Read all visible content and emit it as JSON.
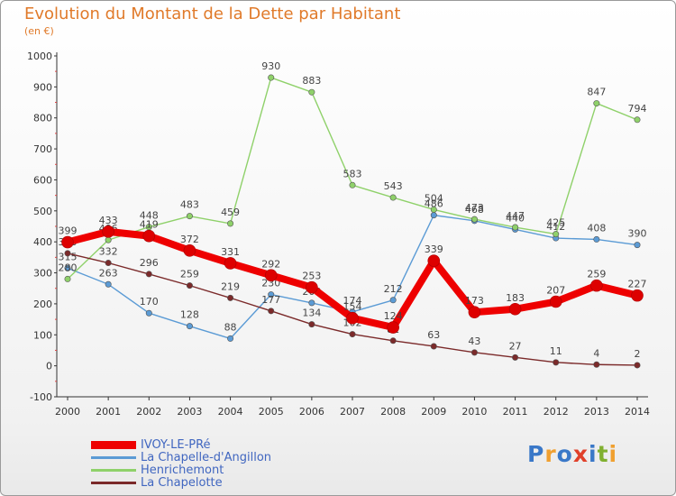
{
  "title": "Evolution du Montant de la Dette par Habitant",
  "subtitle": "(en €)",
  "logo": {
    "text": "Proxiti",
    "colors": [
      "#3a78c8",
      "#f0a030",
      "#3a78c8",
      "#e0402a",
      "#3a78c8",
      "#80b030",
      "#f0a030"
    ]
  },
  "chart_data": {
    "type": "line",
    "title": "Evolution du Montant de la Dette par Habitant",
    "subtitle": "(en €)",
    "xlabel": "",
    "ylabel": "",
    "x": [
      "2000",
      "2001",
      "2002",
      "2003",
      "2004",
      "2005",
      "2006",
      "2007",
      "2008",
      "2009",
      "2010",
      "2011",
      "2012",
      "2013",
      "2014"
    ],
    "ylim": [
      -100,
      1000
    ],
    "yticks": [
      -100,
      0,
      100,
      200,
      300,
      400,
      500,
      600,
      700,
      800,
      900,
      1000
    ],
    "grid": false,
    "legend_position": "bottom-left",
    "series": [
      {
        "name": "IVOY-LE-PRé",
        "color": "#ee0000",
        "values": [
          399,
          433,
          419,
          372,
          331,
          292,
          253,
          154,
          124,
          339,
          173,
          183,
          207,
          259,
          227
        ]
      },
      {
        "name": "La Chapelle-d'Angillon",
        "color": "#5b9bd5",
        "values": [
          315,
          263,
          170,
          128,
          88,
          230,
          203,
          174,
          212,
          486,
          468,
          440,
          412,
          408,
          390
        ]
      },
      {
        "name": "Henrichemont",
        "color": "#8fd16a",
        "values": [
          280,
          406,
          448,
          483,
          459,
          930,
          883,
          583,
          543,
          504,
          473,
          447,
          425,
          847,
          794
        ]
      },
      {
        "name": "La Chapelotte",
        "color": "#7b2a2a",
        "values": [
          363,
          332,
          296,
          259,
          219,
          177,
          134,
          102,
          81,
          63,
          43,
          27,
          11,
          4,
          2
        ]
      }
    ]
  }
}
